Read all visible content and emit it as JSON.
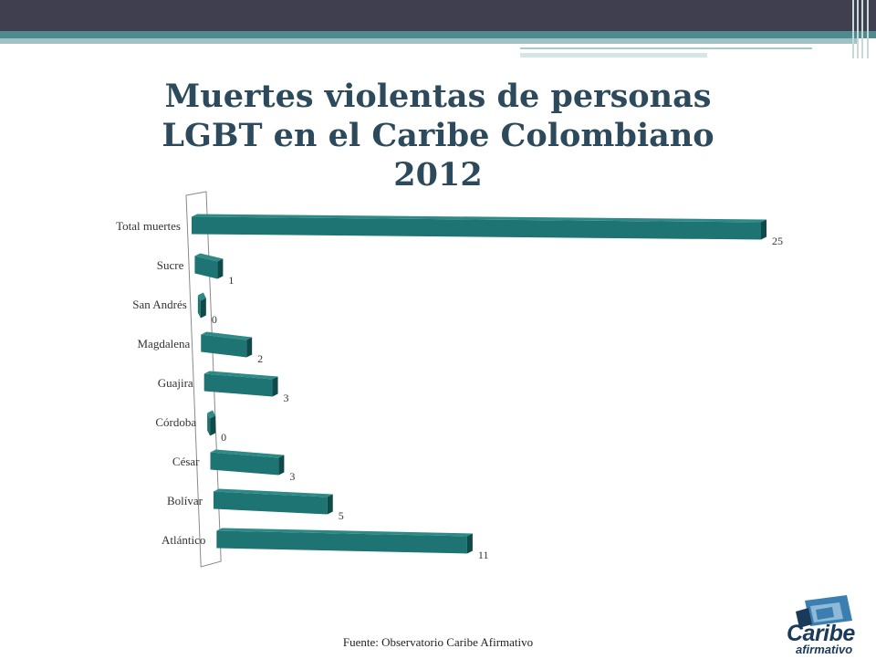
{
  "slide": {
    "title_lines": [
      "Muertes violentas de personas",
      "LGBT en el Caribe Colombiano",
      "2012"
    ],
    "source": "Fuente: Observatorio Caribe Afirmativo",
    "logo": {
      "main": "Caribe",
      "sub": "afirmativo"
    }
  },
  "colors": {
    "bar_front": "#1e7472",
    "bar_top": "#2e8a86",
    "bar_side": "#0f4a48",
    "title": "#2d4a5c"
  },
  "chart_data": {
    "type": "bar",
    "orientation": "horizontal",
    "title": "Muertes violentas de personas LGBT en el Caribe Colombiano 2012",
    "categories": [
      "Total muertes",
      "Sucre",
      "San Andrés",
      "Magdalena",
      "Guajira",
      "Córdoba",
      "César",
      "Bolívar",
      "Atlántico"
    ],
    "values": [
      25,
      1,
      0,
      2,
      3,
      0,
      3,
      5,
      11
    ],
    "xlim": [
      0,
      25
    ],
    "grid": false,
    "legend": "none"
  }
}
